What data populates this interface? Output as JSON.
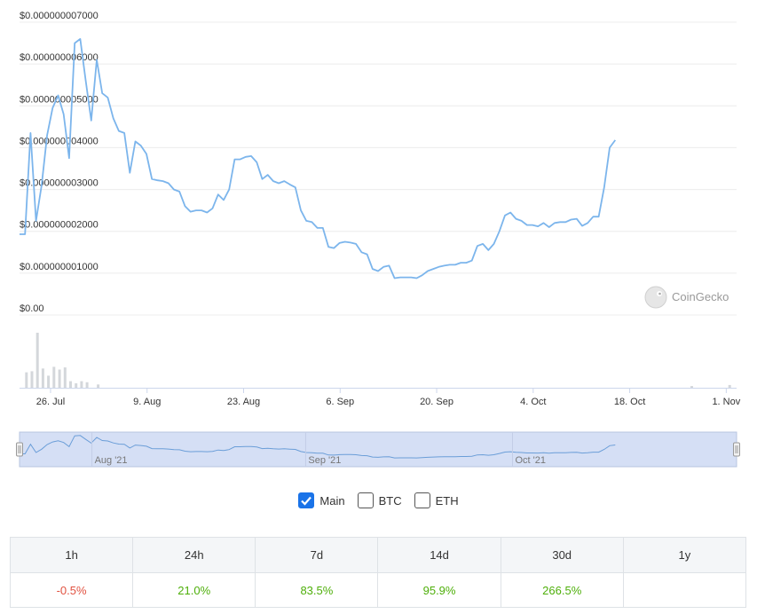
{
  "chart_data": {
    "type": "line",
    "y_ticks": [
      "$0.00",
      "$0.000000001000",
      "$0.000000002000",
      "$0.000000003000",
      "$0.000000004000",
      "$0.000000005000",
      "$0.000000006000",
      "$0.000000007000"
    ],
    "ylim": [
      0,
      7
    ],
    "y_unit_note": "price in units of 1e-9 USD",
    "x_ticks": [
      "26. Jul",
      "9. Aug",
      "23. Aug",
      "6. Sep",
      "20. Sep",
      "4. Oct",
      "18. Oct",
      "1. Nov"
    ],
    "x_tick_days": [
      0,
      14,
      28,
      42,
      56,
      70,
      84,
      98
    ],
    "xlim_days": [
      -4.5,
      99.5
    ],
    "price_series": [
      [
        -4.5,
        1.93
      ],
      [
        -3.7,
        1.93
      ],
      [
        -2.9,
        4.35
      ],
      [
        -2.1,
        2.25
      ],
      [
        -1.3,
        3.1
      ],
      [
        -0.5,
        4.3
      ],
      [
        0.3,
        4.95
      ],
      [
        1.1,
        5.25
      ],
      [
        1.9,
        4.8
      ],
      [
        2.7,
        3.75
      ],
      [
        3.5,
        6.5
      ],
      [
        4.3,
        6.6
      ],
      [
        5.1,
        5.6
      ],
      [
        5.9,
        4.65
      ],
      [
        6.7,
        6.1
      ],
      [
        7.5,
        5.3
      ],
      [
        8.3,
        5.2
      ],
      [
        9.1,
        4.7
      ],
      [
        9.9,
        4.4
      ],
      [
        10.7,
        4.35
      ],
      [
        11.5,
        3.4
      ],
      [
        12.3,
        4.15
      ],
      [
        13.1,
        4.05
      ],
      [
        13.9,
        3.85
      ],
      [
        14.7,
        3.25
      ],
      [
        15.5,
        3.22
      ],
      [
        16.3,
        3.2
      ],
      [
        17.1,
        3.15
      ],
      [
        17.9,
        3.0
      ],
      [
        18.7,
        2.95
      ],
      [
        19.5,
        2.6
      ],
      [
        20.3,
        2.47
      ],
      [
        21.1,
        2.5
      ],
      [
        21.9,
        2.5
      ],
      [
        22.7,
        2.45
      ],
      [
        23.5,
        2.55
      ],
      [
        24.3,
        2.88
      ],
      [
        25.1,
        2.75
      ],
      [
        25.9,
        3.0
      ],
      [
        26.7,
        3.72
      ],
      [
        27.5,
        3.72
      ],
      [
        28.3,
        3.78
      ],
      [
        29.1,
        3.8
      ],
      [
        29.9,
        3.65
      ],
      [
        30.7,
        3.25
      ],
      [
        31.5,
        3.35
      ],
      [
        32.3,
        3.2
      ],
      [
        33.1,
        3.15
      ],
      [
        33.9,
        3.2
      ],
      [
        34.7,
        3.12
      ],
      [
        35.5,
        3.05
      ],
      [
        36.3,
        2.5
      ],
      [
        37.1,
        2.25
      ],
      [
        37.9,
        2.22
      ],
      [
        38.7,
        2.08
      ],
      [
        39.5,
        2.08
      ],
      [
        40.3,
        1.63
      ],
      [
        41.1,
        1.6
      ],
      [
        41.9,
        1.72
      ],
      [
        42.7,
        1.75
      ],
      [
        43.5,
        1.73
      ],
      [
        44.3,
        1.7
      ],
      [
        45.1,
        1.5
      ],
      [
        45.9,
        1.45
      ],
      [
        46.7,
        1.1
      ],
      [
        47.5,
        1.05
      ],
      [
        48.3,
        1.15
      ],
      [
        49.1,
        1.18
      ],
      [
        49.9,
        0.88
      ],
      [
        50.7,
        0.9
      ],
      [
        51.5,
        0.9
      ],
      [
        52.3,
        0.9
      ],
      [
        53.1,
        0.88
      ],
      [
        53.9,
        0.95
      ],
      [
        54.7,
        1.05
      ],
      [
        55.5,
        1.1
      ],
      [
        56.3,
        1.15
      ],
      [
        57.1,
        1.18
      ],
      [
        57.9,
        1.2
      ],
      [
        58.7,
        1.2
      ],
      [
        59.5,
        1.25
      ],
      [
        60.3,
        1.25
      ],
      [
        61.1,
        1.3
      ],
      [
        61.9,
        1.65
      ],
      [
        62.7,
        1.7
      ],
      [
        63.5,
        1.55
      ],
      [
        64.3,
        1.7
      ],
      [
        65.1,
        2.0
      ],
      [
        65.9,
        2.38
      ],
      [
        66.7,
        2.45
      ],
      [
        67.5,
        2.3
      ],
      [
        68.3,
        2.25
      ],
      [
        69.1,
        2.15
      ],
      [
        69.9,
        2.15
      ],
      [
        70.7,
        2.12
      ],
      [
        71.5,
        2.2
      ],
      [
        72.3,
        2.1
      ],
      [
        73.1,
        2.2
      ],
      [
        73.9,
        2.22
      ],
      [
        74.7,
        2.22
      ],
      [
        75.5,
        2.28
      ],
      [
        76.3,
        2.3
      ],
      [
        77.1,
        2.13
      ],
      [
        77.9,
        2.2
      ],
      [
        78.7,
        2.35
      ],
      [
        79.5,
        2.35
      ],
      [
        80.3,
        3.05
      ],
      [
        81.1,
        4.0
      ],
      [
        81.9,
        4.18
      ]
    ],
    "volume_series": [
      [
        -3.5,
        0.28
      ],
      [
        -2.7,
        0.3
      ],
      [
        -1.9,
        1.0
      ],
      [
        -1.1,
        0.35
      ],
      [
        -0.3,
        0.22
      ],
      [
        0.5,
        0.38
      ],
      [
        1.3,
        0.33
      ],
      [
        2.1,
        0.37
      ],
      [
        2.9,
        0.12
      ],
      [
        3.7,
        0.08
      ],
      [
        4.5,
        0.12
      ],
      [
        5.3,
        0.1
      ],
      [
        6.9,
        0.06
      ],
      [
        93.0,
        0.03
      ],
      [
        98.5,
        0.05
      ]
    ],
    "navigator_ticks": [
      "Aug '21",
      "Sep '21",
      "Oct '21"
    ],
    "navigator_tick_days": [
      6,
      37,
      67
    ],
    "line_color": "#7cb5ec",
    "volume_color": "#d4d7db",
    "navigator_fill": "#d5dff5",
    "grid": true
  },
  "watermark": {
    "text": "CoinGecko",
    "icon": "gecko-logo-icon"
  },
  "toggles": [
    {
      "label": "Main",
      "checked": true
    },
    {
      "label": "BTC",
      "checked": false
    },
    {
      "label": "ETH",
      "checked": false
    }
  ],
  "performance": {
    "headers": [
      "1h",
      "24h",
      "7d",
      "14d",
      "30d",
      "1y"
    ],
    "values": [
      "-0.5%",
      "21.0%",
      "83.5%",
      "95.9%",
      "266.5%",
      ""
    ],
    "negative_color": "#e15241",
    "positive_color": "#4eaf0a"
  }
}
